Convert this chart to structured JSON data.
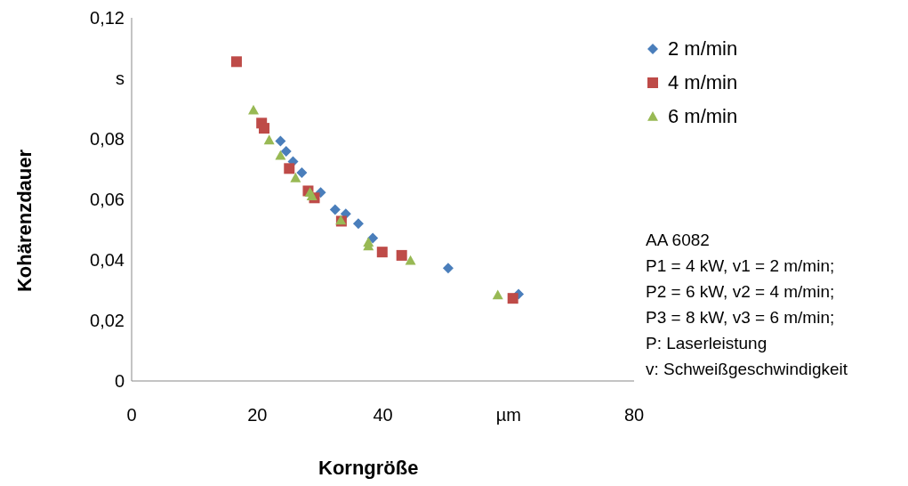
{
  "chart_data": {
    "type": "scatter",
    "xlabel": "Korngröße",
    "ylabel": "Kohärenzdauer",
    "xlim": [
      0,
      80
    ],
    "xticks": [
      0,
      20,
      40,
      {
        "value": 60,
        "label": "µm"
      },
      80
    ],
    "ylim": [
      0,
      0.12
    ],
    "yticks": [
      {
        "value": 0,
        "label": "0"
      },
      {
        "value": 0.02,
        "label": "0,02"
      },
      {
        "value": 0.04,
        "label": "0,04"
      },
      {
        "value": 0.06,
        "label": "0,06"
      },
      {
        "value": 0.08,
        "label": "0,08"
      },
      {
        "value": 0.1,
        "label": "s"
      },
      {
        "value": 0.12,
        "label": "0,12"
      }
    ],
    "grid": false,
    "legend": "top right",
    "series": [
      {
        "name": "2 m/min",
        "color": "#4a7ebb",
        "marker": "diamond",
        "x": [
          23.7,
          24.6,
          25.7,
          27.1,
          30.1,
          32.4,
          34.1,
          36.1,
          38.4,
          50.4,
          61.6
        ],
        "values": [
          0.0793,
          0.0759,
          0.0725,
          0.0688,
          0.0623,
          0.0566,
          0.0552,
          0.052,
          0.0472,
          0.0373,
          0.0287
        ]
      },
      {
        "name": "4 m/min",
        "color": "#be4b48",
        "marker": "square",
        "x": [
          16.7,
          20.7,
          21.1,
          25.1,
          28.1,
          29.1,
          33.4,
          39.9,
          43.0,
          60.7
        ],
        "values": [
          0.1055,
          0.0852,
          0.0835,
          0.0702,
          0.0628,
          0.0605,
          0.0528,
          0.0426,
          0.0415,
          0.0273
        ]
      },
      {
        "name": "6 m/min",
        "color": "#98b954",
        "marker": "triangle",
        "x": [
          19.4,
          21.9,
          23.7,
          26.1,
          28.4,
          28.7,
          33.3,
          37.7,
          37.7,
          44.4,
          58.3
        ],
        "values": [
          0.0895,
          0.0796,
          0.0745,
          0.0671,
          0.0623,
          0.0611,
          0.0531,
          0.0458,
          0.0446,
          0.0398,
          0.0284
        ]
      }
    ],
    "annotations": [
      "AA 6082",
      "P1 = 4 kW, v1 = 2 m/min;",
      "P2 = 6 kW, v2 = 4 m/min;",
      "P3 = 8 kW, v3 = 6 m/min;",
      "P: Laserleistung",
      "v: Schweißgeschwindigkeit"
    ]
  }
}
